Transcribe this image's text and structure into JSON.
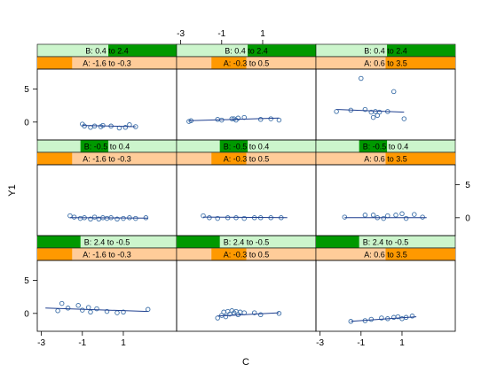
{
  "chart_data": {
    "type": "scatter",
    "xlabel": "C",
    "ylabel": "Y1",
    "xlim": [
      -3.2,
      3.6
    ],
    "ylim": [
      -2.7,
      8.0
    ],
    "x_ticks": [
      -3,
      -1,
      1
    ],
    "y_ticks": [
      0,
      5
    ],
    "colors": {
      "point": "#3c6fa8",
      "line": "#1f3f8f",
      "strip_b_bg": "#ccf5cc",
      "strip_b_fill": "#009900",
      "strip_a_bg": "#ffcc99",
      "strip_a_fill": "#ff9900",
      "frame": "#000000"
    },
    "rows": [
      {
        "b_label": "B: 2.4 to -0.5",
        "b_range": [
          0.0,
          0.31
        ],
        "panels": [
          {
            "a_label": "A: -1.6 to -0.3",
            "a_range": [
              0.0,
              0.25
            ],
            "points": [
              [
                -2.2,
                0.4
              ],
              [
                -2.0,
                1.5
              ],
              [
                -1.7,
                0.8
              ],
              [
                -1.2,
                1.2
              ],
              [
                -1.0,
                0.5
              ],
              [
                -0.7,
                0.9
              ],
              [
                -0.6,
                0.2
              ],
              [
                -0.3,
                0.7
              ],
              [
                0.2,
                0.3
              ],
              [
                0.7,
                0.1
              ],
              [
                1.0,
                0.2
              ],
              [
                2.2,
                0.6
              ]
            ],
            "fit": [
              [
                -2.8,
                0.8
              ],
              [
                2.2,
                0.3
              ]
            ]
          },
          {
            "a_label": "A: -0.3 to 0.5",
            "a_range": [
              0.25,
              0.5
            ],
            "points": [
              [
                -1.2,
                -0.7
              ],
              [
                -1.0,
                -0.3
              ],
              [
                -0.9,
                0.2
              ],
              [
                -0.8,
                -0.5
              ],
              [
                -0.7,
                0.3
              ],
              [
                -0.6,
                -0.1
              ],
              [
                -0.5,
                0.4
              ],
              [
                -0.4,
                0.1
              ],
              [
                -0.3,
                0.3
              ],
              [
                -0.2,
                -0.2
              ],
              [
                -0.1,
                0.2
              ],
              [
                0.1,
                0.1
              ],
              [
                0.6,
                0.1
              ],
              [
                0.9,
                -0.2
              ],
              [
                1.8,
                0.0
              ]
            ],
            "fit": [
              [
                -1.2,
                -0.4
              ],
              [
                1.8,
                0.1
              ]
            ]
          },
          {
            "a_label": "A: 0.6 to 3.5",
            "a_range": [
              0.5,
              1.0
            ],
            "points": [
              [
                -1.5,
                -1.2
              ],
              [
                -0.8,
                -1.1
              ],
              [
                -0.5,
                -0.9
              ],
              [
                0.0,
                -0.7
              ],
              [
                0.3,
                -0.8
              ],
              [
                0.6,
                -0.6
              ],
              [
                0.8,
                -0.5
              ],
              [
                1.0,
                -0.8
              ],
              [
                1.2,
                -0.6
              ],
              [
                1.5,
                -0.4
              ]
            ],
            "fit": [
              [
                -1.5,
                -1.2
              ],
              [
                1.7,
                -0.5
              ]
            ]
          }
        ]
      },
      {
        "b_label": "B: -0.5 to 0.4",
        "b_range": [
          0.31,
          0.51
        ],
        "panels": [
          {
            "a_label": "A: -1.6 to -0.3",
            "a_range": [
              0.0,
              0.25
            ],
            "points": [
              [
                -1.6,
                0.3
              ],
              [
                -1.4,
                0.1
              ],
              [
                -1.1,
                -0.1
              ],
              [
                -0.9,
                0.0
              ],
              [
                -0.6,
                -0.2
              ],
              [
                -0.4,
                0.1
              ],
              [
                -0.2,
                -0.2
              ],
              [
                0.0,
                0.0
              ],
              [
                0.2,
                -0.1
              ],
              [
                0.4,
                0.0
              ],
              [
                0.7,
                -0.2
              ],
              [
                1.0,
                -0.1
              ],
              [
                1.3,
                0.0
              ],
              [
                1.6,
                -0.1
              ],
              [
                2.1,
                0.0
              ]
            ],
            "fit": [
              [
                -1.6,
                0.0
              ],
              [
                2.2,
                -0.05
              ]
            ]
          },
          {
            "a_label": "A: -0.3 to 0.5",
            "a_range": [
              0.25,
              0.5
            ],
            "points": [
              [
                -1.9,
                0.3
              ],
              [
                -1.6,
                0.0
              ],
              [
                -1.2,
                -0.1
              ],
              [
                -0.7,
                0.0
              ],
              [
                -0.3,
                0.0
              ],
              [
                0.1,
                -0.1
              ],
              [
                0.6,
                0.0
              ],
              [
                0.9,
                0.0
              ],
              [
                1.4,
                0.0
              ],
              [
                1.9,
                0.0
              ]
            ],
            "fit": [
              [
                -1.9,
                0.1
              ],
              [
                2.2,
                0.0
              ]
            ]
          },
          {
            "a_label": "A: 0.6 to 3.5",
            "a_range": [
              0.5,
              1.0
            ],
            "points": [
              [
                -1.8,
                0.1
              ],
              [
                -0.8,
                0.4
              ],
              [
                -0.4,
                0.4
              ],
              [
                -0.2,
                0.0
              ],
              [
                0.1,
                -0.1
              ],
              [
                0.3,
                0.3
              ],
              [
                0.7,
                0.4
              ],
              [
                1.0,
                0.6
              ],
              [
                1.2,
                -0.1
              ],
              [
                1.6,
                0.5
              ],
              [
                2.0,
                0.1
              ]
            ],
            "fit": [
              [
                -1.8,
                0.0
              ],
              [
                2.2,
                0.0
              ]
            ]
          }
        ]
      },
      {
        "b_label": "B: 0.4 to 2.4",
        "b_range": [
          0.51,
          1.0
        ],
        "panels": [
          {
            "a_label": "A: -1.6 to -0.3",
            "a_range": [
              0.0,
              0.25
            ],
            "points": [
              [
                -1.0,
                -0.3
              ],
              [
                -0.9,
                -0.6
              ],
              [
                -0.6,
                -0.8
              ],
              [
                -0.4,
                -0.6
              ],
              [
                -0.1,
                -0.7
              ],
              [
                0.0,
                -0.5
              ],
              [
                0.4,
                -0.6
              ],
              [
                0.8,
                -0.9
              ],
              [
                1.1,
                -0.8
              ],
              [
                1.6,
                -0.7
              ],
              [
                1.3,
                -0.4
              ]
            ],
            "fit": [
              [
                -1.0,
                -0.5
              ],
              [
                1.6,
                -0.7
              ]
            ]
          },
          {
            "a_label": "A: -0.3 to 0.5",
            "a_range": [
              0.25,
              0.5
            ],
            "points": [
              [
                -2.6,
                0.1
              ],
              [
                -2.5,
                0.2
              ],
              [
                -1.2,
                0.4
              ],
              [
                -1.0,
                0.3
              ],
              [
                -0.5,
                0.5
              ],
              [
                -0.4,
                0.5
              ],
              [
                -0.3,
                0.3
              ],
              [
                -0.2,
                0.6
              ],
              [
                0.1,
                0.7
              ],
              [
                0.9,
                0.4
              ],
              [
                1.4,
                0.5
              ],
              [
                1.8,
                0.3
              ]
            ],
            "fit": [
              [
                -2.6,
                0.2
              ],
              [
                1.8,
                0.6
              ]
            ]
          },
          {
            "a_label": "A: 0.6 to 3.5",
            "a_range": [
              0.5,
              1.0
            ],
            "points": [
              [
                -2.2,
                1.6
              ],
              [
                -1.5,
                1.8
              ],
              [
                -1.0,
                6.6
              ],
              [
                -0.8,
                1.9
              ],
              [
                -0.5,
                1.5
              ],
              [
                -0.4,
                0.7
              ],
              [
                -0.3,
                1.6
              ],
              [
                -0.2,
                1.0
              ],
              [
                -0.1,
                1.5
              ],
              [
                0.3,
                1.6
              ],
              [
                0.6,
                4.6
              ],
              [
                1.1,
                0.5
              ]
            ],
            "fit": [
              [
                -2.2,
                1.9
              ],
              [
                1.1,
                1.5
              ]
            ]
          }
        ]
      }
    ]
  }
}
